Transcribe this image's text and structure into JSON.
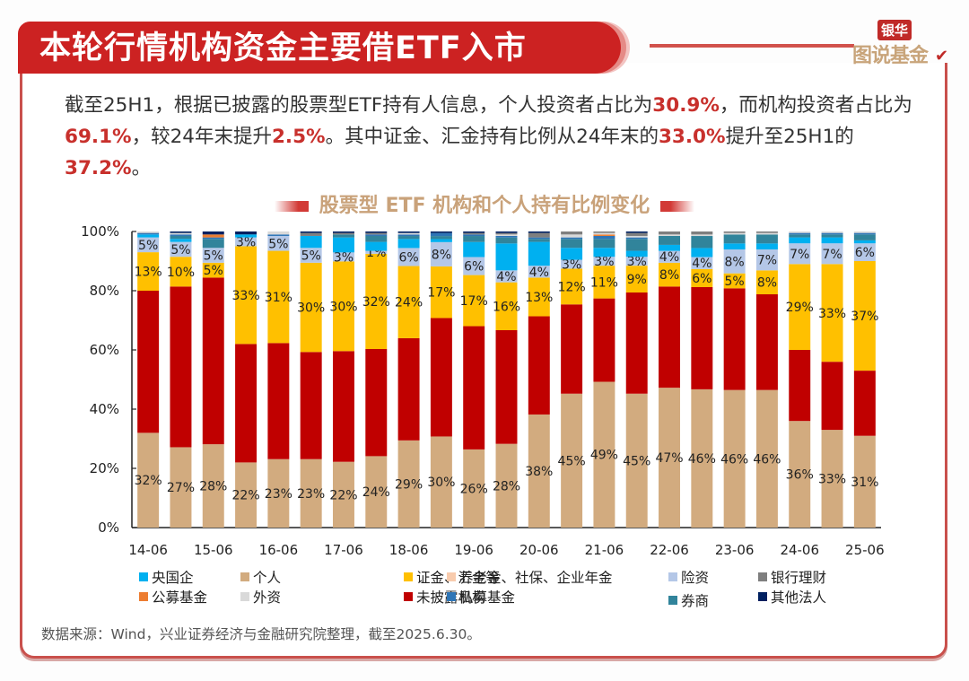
{
  "header": {
    "title": "本轮行情机构资金主要借ETF入市",
    "logo_tag": "银华",
    "logo_main": "图说基金"
  },
  "intro": {
    "segments": [
      {
        "text": "截至25H1，根据已披露的股票型ETF持有人信息，个人投资者占比为",
        "hl": false
      },
      {
        "text": "30.9%",
        "hl": true
      },
      {
        "text": "，而机构投资者占比为",
        "hl": false
      },
      {
        "text": "69.1%",
        "hl": true
      },
      {
        "text": "，较24年末提升",
        "hl": false
      },
      {
        "text": "2.5%",
        "hl": true
      },
      {
        "text": "。其中证金、汇金持有比例从24年末的",
        "hl": false
      },
      {
        "text": "33.0%",
        "hl": true
      },
      {
        "text": "提升至25H1的",
        "hl": false
      },
      {
        "text": "37.2%",
        "hl": true
      },
      {
        "text": "。",
        "hl": false
      }
    ]
  },
  "chart_data": {
    "type": "bar",
    "stacked": true,
    "title": "股票型 ETF 机构和个人持有比例变化",
    "xlabel": "",
    "ylabel": "",
    "ylim": [
      0,
      100
    ],
    "yticks": [
      "0%",
      "20%",
      "40%",
      "60%",
      "80%",
      "100%"
    ],
    "ytick_values": [
      0,
      20,
      40,
      60,
      80,
      100
    ],
    "x": [
      "14-06",
      "14-12",
      "15-06",
      "15-12",
      "16-06",
      "16-12",
      "17-06",
      "17-12",
      "18-06",
      "18-12",
      "19-06",
      "19-12",
      "20-06",
      "20-12",
      "21-06",
      "21-12",
      "22-06",
      "22-12",
      "23-06",
      "23-12",
      "24-06",
      "24-12",
      "25-06"
    ],
    "xtick_labels": [
      "14-06",
      "15-06",
      "16-06",
      "17-06",
      "18-06",
      "19-06",
      "20-06",
      "21-06",
      "22-06",
      "23-06",
      "24-06",
      "25-06"
    ],
    "grid": false,
    "legend_position": "bottom",
    "series": [
      {
        "name": "个人",
        "color": "#d2ab7f",
        "labeled": true,
        "values": [
          32,
          27,
          28,
          22,
          23,
          23,
          22,
          24,
          29,
          30,
          26,
          28,
          38,
          45,
          49,
          45,
          47,
          46,
          46,
          46,
          36,
          33,
          31
        ]
      },
      {
        "name": "未披露机构",
        "color": "#c00000",
        "labeled": false,
        "values": [
          48,
          54,
          56,
          40,
          39,
          36,
          37,
          36,
          34,
          39,
          41,
          38,
          33,
          30,
          28,
          34,
          34,
          34,
          34,
          32,
          24,
          23,
          22
        ]
      },
      {
        "name": "证金、汇金等",
        "color": "#ffc000",
        "labeled": true,
        "values": [
          13,
          10,
          5,
          33,
          31,
          30,
          30,
          32,
          24,
          17,
          17,
          16,
          13,
          12,
          11,
          9,
          8,
          6,
          5,
          8,
          29,
          33,
          37
        ]
      },
      {
        "name": "险资",
        "color": "#b4c7e7",
        "labeled": true,
        "values": [
          5,
          5,
          5,
          3,
          5,
          5,
          3,
          1,
          6,
          8,
          6,
          4,
          4,
          3,
          3,
          3,
          4,
          4,
          8,
          7,
          7,
          7,
          6
        ]
      },
      {
        "name": "央国企",
        "color": "#00b0f0",
        "labeled": false,
        "values": [
          1,
          1,
          0,
          1,
          0,
          4,
          5,
          3,
          3,
          1,
          5,
          9,
          8,
          4,
          3,
          2,
          2,
          3,
          2,
          2,
          2,
          2,
          1
        ]
      },
      {
        "name": "券商",
        "color": "#31849b",
        "labeled": false,
        "values": [
          0,
          1,
          3,
          0,
          0,
          0,
          1,
          2,
          1,
          1,
          2,
          2,
          1,
          3,
          3,
          4,
          3,
          4,
          3,
          3,
          1,
          1,
          2
        ]
      },
      {
        "name": "私募基金",
        "color": "#2e75b6",
        "labeled": false,
        "values": [
          0.5,
          0.5,
          0.5,
          0,
          0.5,
          0,
          0,
          0.5,
          0.5,
          1,
          0.5,
          0.5,
          0.5,
          0.5,
          1,
          0.5,
          0,
          0,
          0,
          0,
          0.5,
          0.5,
          0.5
        ]
      },
      {
        "name": "公募基金",
        "color": "#ed7d31",
        "labeled": false,
        "values": [
          0,
          0,
          1,
          0,
          0,
          0,
          0,
          0,
          0,
          0,
          0,
          0,
          0,
          0,
          0.5,
          0,
          0,
          0,
          0,
          0,
          0,
          0,
          0
        ]
      },
      {
        "name": "养老金、社保、企业年金",
        "color": "#f8cbad",
        "labeled": false,
        "values": [
          0,
          0,
          0,
          0,
          0,
          0,
          0,
          0,
          0,
          0,
          0,
          0,
          0,
          0,
          0,
          0,
          0,
          0,
          0,
          0,
          0,
          0,
          0
        ]
      },
      {
        "name": "外资",
        "color": "#d9d9d9",
        "labeled": false,
        "values": [
          0.5,
          0.5,
          0,
          0,
          1,
          0,
          0,
          0,
          0.5,
          0,
          0,
          0.5,
          0,
          1,
          0.5,
          0.5,
          0.5,
          0.5,
          0.5,
          0.5,
          0.5,
          0.5,
          0.5
        ]
      },
      {
        "name": "银行理财",
        "color": "#7f7f7f",
        "labeled": false,
        "values": [
          0,
          0,
          0,
          0,
          0,
          1,
          0.5,
          0.5,
          0,
          0,
          0.5,
          0.5,
          1.5,
          1,
          0.5,
          1,
          1,
          1,
          0.5,
          0.5,
          0,
          0,
          0
        ]
      },
      {
        "name": "其他法人",
        "color": "#002060",
        "labeled": false,
        "values": [
          0,
          0.5,
          1,
          1,
          0,
          0.5,
          0.5,
          0.5,
          0.5,
          0.5,
          0.5,
          0.5,
          0.5,
          0,
          0,
          0.5,
          0,
          0,
          0,
          0,
          0,
          0,
          0
        ]
      }
    ]
  },
  "legend": {
    "items": [
      {
        "name": "央国企",
        "color": "#00b0f0"
      },
      {
        "name": "个人",
        "color": "#d2ab7f"
      },
      {
        "name": "证金、汇金等",
        "color": "#ffc000"
      },
      {
        "name": "养老金、社保、企业年金",
        "color": "#f8cbad"
      },
      {
        "name": "险资",
        "color": "#b4c7e7"
      },
      {
        "name": "银行理财",
        "color": "#7f7f7f"
      },
      {
        "name": "公募基金",
        "color": "#ed7d31"
      },
      {
        "name": "外资",
        "color": "#d9d9d9"
      },
      {
        "name": "未披露机构",
        "color": "#c00000"
      },
      {
        "name": "私募基金",
        "color": "#2e75b6"
      },
      {
        "name": "券商",
        "color": "#31849b"
      },
      {
        "name": "其他法人",
        "color": "#002060"
      }
    ]
  },
  "source": "数据来源：Wind，兴业证券经济与金融研究院整理，截至2025.6.30。"
}
